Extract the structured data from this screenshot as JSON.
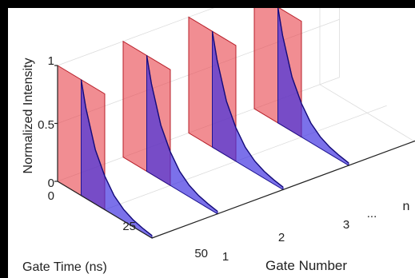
{
  "chart_data": {
    "type": "area",
    "title": "",
    "xlabel": "Gate Time (ns)",
    "ylabel": "Gate Number",
    "zlabel": "Normalized Intensity",
    "x_ticks": [
      "0",
      "25",
      "50"
    ],
    "y_ticks": [
      "1",
      "2",
      "3",
      "...",
      "n"
    ],
    "z_ticks": [
      "0",
      "0.5",
      "1"
    ],
    "xlim": [
      0,
      50
    ],
    "zlim": [
      0,
      1
    ],
    "grid": true,
    "gates": [
      1,
      2,
      3,
      4
    ],
    "series": [
      {
        "role": "gate window",
        "color": "#e8474f",
        "shape": "rectangle",
        "gate_time_range": [
          0,
          25
        ],
        "value": 1
      },
      {
        "role": "decay signal",
        "color": "#3d2ee0",
        "shape": "exponential decay",
        "gate_time_range": [
          12.5,
          50
        ],
        "x": [
          12.5,
          15,
          20,
          25,
          30,
          35,
          40,
          45,
          50
        ],
        "values": [
          1.0,
          0.78,
          0.47,
          0.29,
          0.17,
          0.1,
          0.06,
          0.037,
          0.022
        ]
      }
    ]
  }
}
